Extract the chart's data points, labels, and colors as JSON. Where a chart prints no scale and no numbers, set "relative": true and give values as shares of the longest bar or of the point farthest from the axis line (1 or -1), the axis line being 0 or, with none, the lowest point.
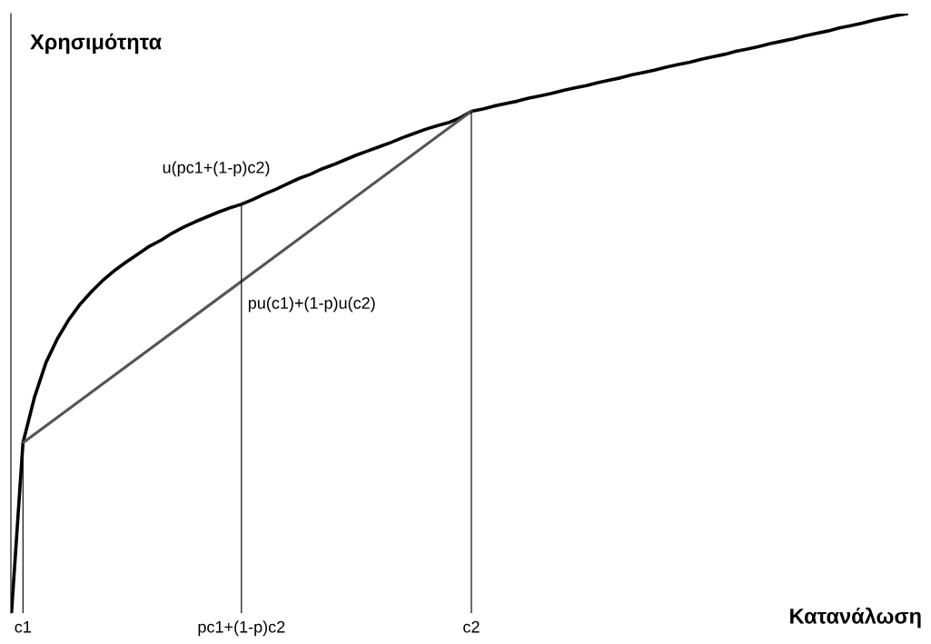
{
  "chart_data": {
    "type": "line",
    "relative": true,
    "xlabel": "Κατανάλωση",
    "ylabel": "Χρησιμότητα",
    "categories": [
      null,
      "c1",
      null,
      null,
      null,
      null,
      null,
      null,
      null,
      null,
      null,
      null,
      null,
      null,
      null,
      null,
      null,
      null,
      null,
      null,
      "pc1+(1-p)c2",
      null,
      null,
      null,
      null,
      null,
      null,
      null,
      null,
      null,
      null,
      null,
      null,
      null,
      null,
      null,
      null,
      null,
      null,
      null,
      "c2",
      null,
      null,
      null,
      null,
      null,
      null,
      null,
      null,
      null,
      null,
      null,
      null,
      null,
      null,
      null,
      null,
      null,
      null,
      null,
      null,
      null,
      null,
      null,
      null,
      null,
      null,
      null,
      null,
      null,
      null,
      null,
      null,
      null,
      null,
      null,
      null,
      null,
      null
    ],
    "series": [
      {
        "color": "#000000",
        "values": [
          0,
          0.284,
          0.36,
          0.418,
          0.458,
          0.49,
          0.516,
          0.537,
          0.556,
          0.572,
          0.586,
          0.599,
          0.612,
          0.622,
          0.634,
          0.644,
          0.653,
          0.661,
          0.669,
          0.676,
          0.682,
          0.69,
          0.699,
          0.707,
          0.716,
          0.725,
          0.732,
          0.741,
          0.748,
          0.756,
          0.764,
          0.771,
          0.778,
          0.785,
          0.793,
          0.8,
          0.807,
          0.813,
          0.818,
          0.826,
          0.837,
          0.841,
          0.846,
          0.85,
          0.854,
          0.859,
          0.863,
          0.867,
          0.872,
          0.876,
          0.88,
          0.885,
          0.889,
          0.893,
          0.898,
          0.902,
          0.906,
          0.911,
          0.915,
          0.919,
          0.924,
          0.928,
          0.932,
          0.937,
          0.941,
          0.945,
          0.95,
          0.954,
          0.958,
          0.963,
          0.967,
          0.971,
          0.976,
          0.98,
          0.984,
          0.989,
          0.993,
          0.997,
          1
        ]
      },
      {
        "type": "line",
        "color": "#555555",
        "values": [
          null,
          0.284,
          null,
          null,
          null,
          null,
          null,
          null,
          null,
          null,
          null,
          null,
          null,
          null,
          null,
          null,
          null,
          null,
          null,
          null,
          null,
          null,
          null,
          null,
          null,
          null,
          null,
          null,
          null,
          null,
          null,
          null,
          null,
          null,
          null,
          null,
          null,
          null,
          null,
          null,
          0.837,
          null,
          null,
          null,
          null,
          null,
          null,
          null,
          null,
          null,
          null,
          null,
          null,
          null,
          null,
          null,
          null,
          null,
          null,
          null,
          null,
          null,
          null,
          null,
          null,
          null,
          null,
          null,
          null,
          null,
          null,
          null,
          null,
          null,
          null,
          null,
          null,
          null,
          null
        ]
      },
      {
        "type": "bar",
        "color": "#000000",
        "values": [
          null,
          0.284,
          null,
          null,
          null,
          null,
          null,
          null,
          null,
          null,
          null,
          null,
          null,
          null,
          null,
          null,
          null,
          null,
          null,
          null,
          0.682,
          null,
          null,
          null,
          null,
          null,
          null,
          null,
          null,
          null,
          null,
          null,
          null,
          null,
          null,
          null,
          null,
          null,
          null,
          null,
          0.837,
          null,
          null,
          null,
          null,
          null,
          null,
          null,
          null,
          null,
          null,
          null,
          null,
          null,
          null,
          null,
          null,
          null,
          null,
          null,
          null,
          null,
          null,
          null,
          null,
          null,
          null,
          null,
          null,
          null,
          null,
          null,
          null,
          null,
          null,
          null,
          null,
          null,
          null
        ]
      }
    ],
    "annotations": [
      {
        "text": "u(pc1+(1-p)c2)",
        "x": "pc1+(1-p)c2",
        "y": 0.682
      },
      {
        "text": "pu(c1)+(1-p)u(c2)",
        "x": "pc1+(1-p)c2",
        "y": 0.553
      }
    ],
    "grid": false,
    "legend": false
  }
}
